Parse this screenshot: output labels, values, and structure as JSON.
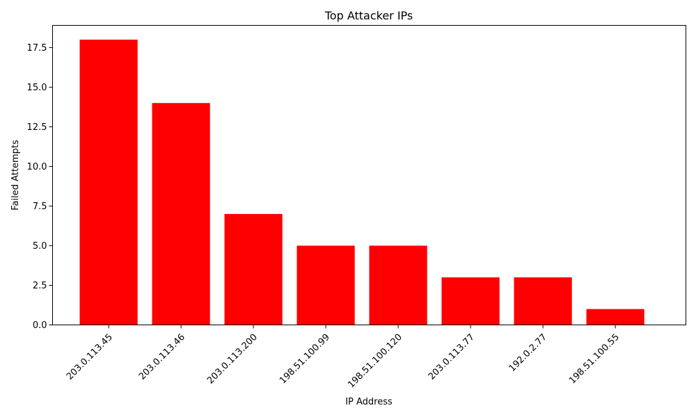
{
  "chart_data": {
    "type": "bar",
    "title": "Top Attacker IPs",
    "xlabel": "IP Address",
    "ylabel": "Failed Attempts",
    "categories": [
      "203.0.113.45",
      "203.0.113.46",
      "203.0.113.200",
      "198.51.100.99",
      "198.51.100.120",
      "203.0.113.77",
      "192.0.2.77",
      "198.51.100.55"
    ],
    "values": [
      18,
      14,
      7,
      5,
      5,
      3,
      3,
      1
    ],
    "ylim": [
      0,
      18.9
    ],
    "yticks": [
      0.0,
      2.5,
      5.0,
      7.5,
      10.0,
      12.5,
      15.0,
      17.5
    ],
    "ytick_labels": [
      "0.0",
      "2.5",
      "5.0",
      "7.5",
      "10.0",
      "12.5",
      "15.0",
      "17.5"
    ],
    "bar_color": "#ff0000",
    "grid": false,
    "legend": null
  }
}
